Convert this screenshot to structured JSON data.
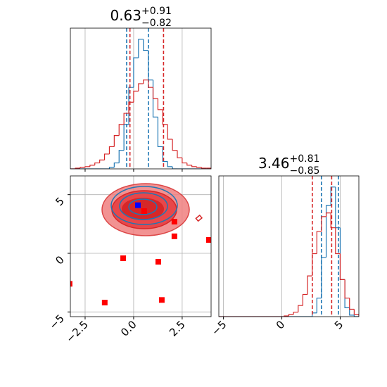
{
  "chart_data": [
    {
      "type": "histogram",
      "title": {
        "value": "0.63",
        "plus": "+0.91",
        "minus": "−0.82"
      },
      "xlim": [
        -3.26,
        3.99
      ],
      "ylim": [
        0,
        190
      ],
      "xticks": [
        -2.5,
        0,
        2.5
      ],
      "grid": true,
      "bins": [
        -3.25,
        -3.0,
        -2.75,
        -2.5,
        -2.25,
        -2.0,
        -1.75,
        -1.5,
        -1.25,
        -1.0,
        -0.75,
        -0.5,
        -0.25,
        0,
        0.25,
        0.5,
        0.75,
        1.0,
        1.25,
        1.5,
        1.75,
        2.0,
        2.25,
        2.5,
        2.75,
        3.0,
        3.25,
        3.5,
        3.75,
        4.0
      ],
      "series": [
        {
          "color": "#1f77b4",
          "values": [
            0,
            0,
            0,
            0,
            0,
            0,
            0,
            0,
            2,
            8,
            25,
            60,
            110,
            150,
            175,
            160,
            120,
            70,
            30,
            10,
            3,
            0,
            0,
            0,
            0,
            0,
            0,
            0,
            0
          ],
          "quantiles": [
            -0.36,
            0.76
          ]
        },
        {
          "color": "#d62728",
          "values": [
            0,
            1,
            2,
            3,
            5,
            8,
            12,
            20,
            30,
            45,
            60,
            75,
            90,
            105,
            115,
            120,
            110,
            95,
            80,
            60,
            40,
            25,
            15,
            8,
            5,
            3,
            2,
            1,
            1
          ],
          "quantiles": [
            -0.19,
            1.54
          ]
        }
      ]
    },
    {
      "type": "scatter",
      "xlim": [
        -3.26,
        3.99
      ],
      "ylim": [
        -5.4,
        6.6
      ],
      "xticks": [
        {
          "value": -2.5,
          "label": "−2.5"
        },
        {
          "value": 0,
          "label": "0.0"
        },
        {
          "value": 2.5,
          "label": "2.5"
        }
      ],
      "yticks": [
        {
          "value": -5,
          "label": "−5"
        },
        0,
        5
      ],
      "grid": true,
      "series": [
        {
          "color": "#ff0000",
          "x": [
            3.88,
            2.1,
            2.1,
            0.54,
            -0.54,
            1.27,
            -1.49,
            1.45,
            -3.3
          ],
          "y": [
            1.14,
            2.7,
            1.45,
            3.6,
            -0.42,
            -0.72,
            -4.2,
            -3.98,
            -2.6
          ]
        },
        {
          "color": "#0000ff",
          "x": [
            0.22
          ],
          "y": [
            4.1
          ]
        }
      ]
    },
    {
      "type": "histogram",
      "title": {
        "value": "3.46",
        "plus": "+0.81",
        "minus": "−0.85"
      },
      "xlim": [
        -5.4,
        6.6
      ],
      "ylim": [
        0,
        190
      ],
      "xticks": [
        {
          "value": -5,
          "label": "−5"
        },
        0,
        5
      ],
      "grid": true,
      "bins": [
        -5.4,
        -5.0,
        -4.6,
        -4.2,
        -3.8,
        -3.4,
        -3.0,
        -2.6,
        -2.2,
        -1.8,
        -1.4,
        -1.0,
        -0.6,
        -0.2,
        0.2,
        0.6,
        1.0,
        1.4,
        1.8,
        2.2,
        2.6,
        3.0,
        3.4,
        3.8,
        4.2,
        4.6,
        5.0,
        5.4,
        5.8,
        6.2,
        6.6
      ],
      "series": [
        {
          "color": "#1f77b4",
          "values": [
            0,
            0,
            0,
            0,
            0,
            0,
            0,
            0,
            0,
            0,
            0,
            0,
            0,
            0,
            0,
            0,
            0,
            0,
            0,
            0,
            5,
            25,
            80,
            150,
            175,
            120,
            50,
            12,
            2,
            0
          ],
          "quantiles": [
            3.39,
            4.85
          ]
        },
        {
          "color": "#d62728",
          "values": [
            0,
            0,
            0,
            0,
            0,
            0,
            0,
            0,
            0,
            0,
            0,
            0,
            0,
            0,
            1,
            3,
            6,
            15,
            30,
            55,
            85,
            115,
            135,
            140,
            120,
            85,
            50,
            25,
            10,
            3
          ],
          "quantiles": [
            2.61,
            4.27
          ]
        }
      ]
    }
  ]
}
